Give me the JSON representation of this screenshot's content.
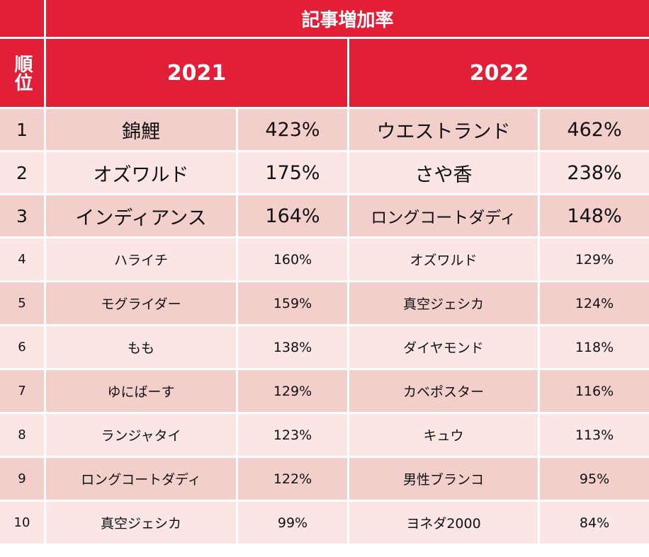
{
  "header": {
    "title": "記事増加率",
    "rank_label": "順位",
    "year1": "2021",
    "year2": "2022"
  },
  "rows": [
    {
      "rank": "1",
      "name2021": "錦鯉",
      "pct2021": "423%",
      "name2022": "ウエストランド",
      "pct2022": "462%"
    },
    {
      "rank": "2",
      "name2021": "オズワルド",
      "pct2021": "175%",
      "name2022": "さや香",
      "pct2022": "238%"
    },
    {
      "rank": "3",
      "name2021": "インディアンス",
      "pct2021": "164%",
      "name2022": "ロングコートダディ",
      "pct2022": "148%"
    },
    {
      "rank": "4",
      "name2021": "ハライチ",
      "pct2021": "160%",
      "name2022": "オズワルド",
      "pct2022": "129%"
    },
    {
      "rank": "5",
      "name2021": "モグライダー",
      "pct2021": "159%",
      "name2022": "真空ジェシカ",
      "pct2022": "124%"
    },
    {
      "rank": "6",
      "name2021": "もも",
      "pct2021": "138%",
      "name2022": "ダイヤモンド",
      "pct2022": "118%"
    },
    {
      "rank": "7",
      "name2021": "ゆにばーす",
      "pct2021": "129%",
      "name2022": "カベポスター",
      "pct2022": "116%"
    },
    {
      "rank": "8",
      "name2021": "ランジャタイ",
      "pct2021": "123%",
      "name2022": "キュウ",
      "pct2022": "113%"
    },
    {
      "rank": "9",
      "name2021": "ロングコートダディ",
      "pct2021": "122%",
      "name2022": "男性ブランコ",
      "pct2022": "95%"
    },
    {
      "rank": "10",
      "name2021": "真空ジェシカ",
      "pct2021": "99%",
      "name2022": "ヨネダ2000",
      "pct2022": "84%"
    }
  ],
  "colors": {
    "header_red": "#e31e37",
    "row_dark": "#f3cfcc",
    "row_light": "#fbe6e4"
  }
}
